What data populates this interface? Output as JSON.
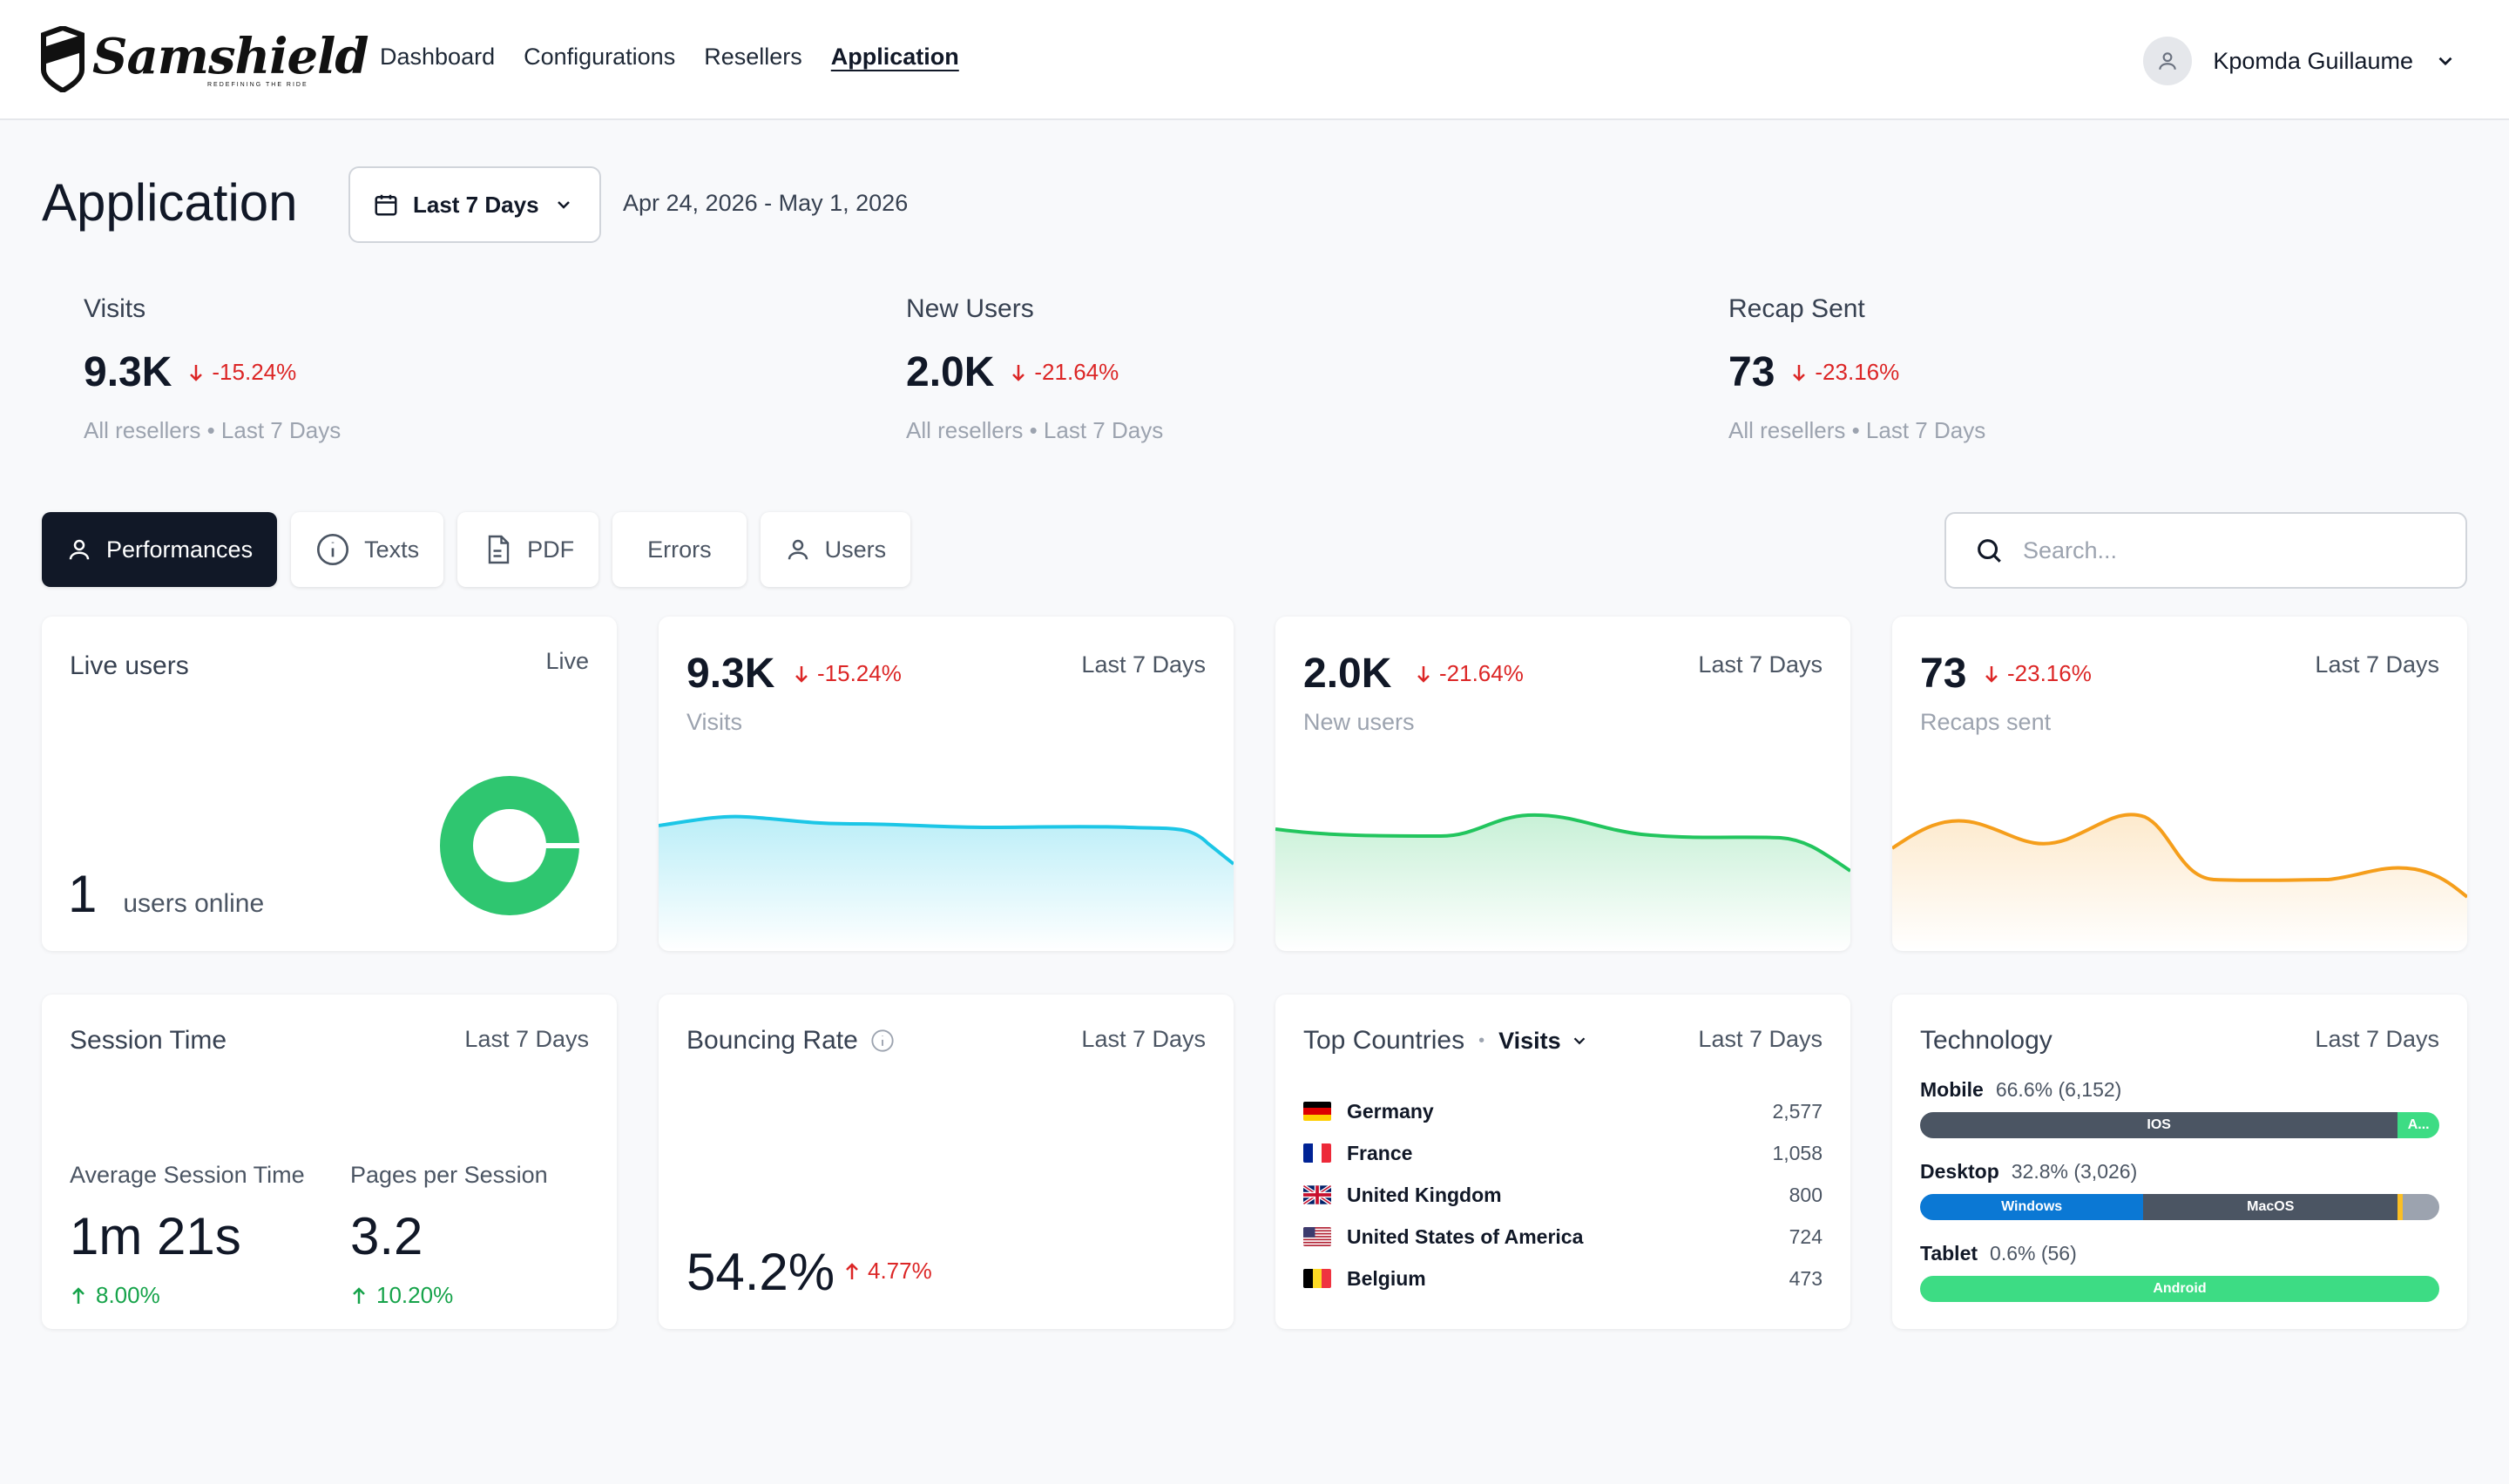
{
  "header": {
    "brand": "Samshield",
    "tagline": "REDEFINING THE RIDE",
    "nav": [
      "Dashboard",
      "Configurations",
      "Resellers",
      "Application"
    ],
    "active_nav": "Application",
    "user_name": "Kpomda Guillaume"
  },
  "page": {
    "title": "Application",
    "range_label": "Last 7 Days",
    "date_range": "Apr 24, 2026 - May 1, 2026"
  },
  "kpis": [
    {
      "label": "Visits",
      "value": "9.3K",
      "delta": "-15.24%",
      "sub": "All resellers • Last 7 Days"
    },
    {
      "label": "New Users",
      "value": "2.0K",
      "delta": "-21.64%",
      "sub": "All resellers • Last 7 Days"
    },
    {
      "label": "Recap Sent",
      "value": "73",
      "delta": "-23.16%",
      "sub": "All resellers • Last 7 Days"
    }
  ],
  "tabs": [
    "Performances",
    "Texts",
    "PDF",
    "Errors",
    "Users"
  ],
  "search": {
    "placeholder": "Search..."
  },
  "live_users": {
    "title": "Live users",
    "status": "Live",
    "count": "1",
    "suffix": "users online"
  },
  "mini_cards": [
    {
      "value": "9.3K",
      "delta": "-15.24%",
      "label": "Visits",
      "period": "Last 7 Days",
      "color": "#1cc6e6"
    },
    {
      "value": "2.0K",
      "delta": "-21.64%",
      "label": "New users",
      "period": "Last 7 Days",
      "color": "#22c55e"
    },
    {
      "value": "73",
      "delta": "-23.16%",
      "label": "Recaps sent",
      "period": "Last 7 Days",
      "color": "#f59e1b"
    }
  ],
  "session": {
    "title": "Session Time",
    "period": "Last 7 Days",
    "avg_label": "Average Session Time",
    "avg_value": "1m 21s",
    "avg_delta": "8.00%",
    "pages_label": "Pages per Session",
    "pages_value": "3.2",
    "pages_delta": "10.20%"
  },
  "bounce": {
    "title": "Bouncing Rate",
    "period": "Last 7 Days",
    "value": "54.2%",
    "delta": "4.77%"
  },
  "countries": {
    "title": "Top Countries",
    "metric": "Visits",
    "period": "Last 7 Days",
    "rows": [
      {
        "name": "Germany",
        "count": "2,577"
      },
      {
        "name": "France",
        "count": "1,058"
      },
      {
        "name": "United Kingdom",
        "count": "800"
      },
      {
        "name": "United States of America",
        "count": "724"
      },
      {
        "name": "Belgium",
        "count": "473"
      }
    ]
  },
  "technology": {
    "title": "Technology",
    "period": "Last 7 Days",
    "groups": [
      {
        "name": "Mobile",
        "pct": "66.6% (6,152)",
        "segments": [
          {
            "label": "IOS",
            "share": 0.92,
            "color": "#4b5563"
          },
          {
            "label": "A...",
            "share": 0.08,
            "color": "#3ddc84"
          }
        ]
      },
      {
        "name": "Desktop",
        "pct": "32.8% (3,026)",
        "segments": [
          {
            "label": "Windows",
            "share": 0.43,
            "color": "#0b78d4"
          },
          {
            "label": "MacOS",
            "share": 0.49,
            "color": "#4b5563"
          },
          {
            "label": "",
            "share": 0.01,
            "color": "#fbbf24"
          },
          {
            "label": "",
            "share": 0.07,
            "color": "#9ca3af"
          }
        ]
      },
      {
        "name": "Tablet",
        "pct": "0.6% (56)",
        "segments": [
          {
            "label": "Android",
            "share": 1.0,
            "color": "#3ddc84"
          }
        ]
      }
    ]
  },
  "colors": {
    "accent_dark": "#111827",
    "negative": "#dc2626",
    "positive": "#16a34a",
    "live_donut": "#2fc670"
  }
}
